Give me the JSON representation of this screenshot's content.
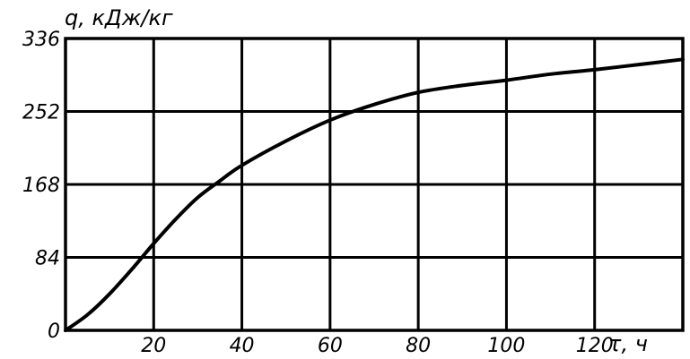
{
  "chart_data": {
    "type": "line",
    "title": "",
    "ylabel": "q, кДж/кг",
    "xlabel": "τ, ч",
    "xlim": [
      0,
      140
    ],
    "ylim": [
      0,
      336
    ],
    "x_ticks": [
      0,
      20,
      40,
      60,
      80,
      100,
      120,
      140
    ],
    "x_tick_labels": [
      "20",
      "40",
      "60",
      "80",
      "100",
      "120"
    ],
    "y_ticks": [
      0,
      84,
      168,
      252,
      336
    ],
    "y_tick_labels": [
      "0",
      "84",
      "168",
      "252",
      "336"
    ],
    "grid": true,
    "colors": {
      "line": "#000000",
      "grid": "#000000",
      "background": "#ffffff"
    },
    "series": [
      {
        "x": [
          0,
          5,
          10,
          15,
          20,
          25,
          30,
          35,
          40,
          50,
          60,
          70,
          80,
          90,
          100,
          110,
          120,
          130,
          140
        ],
        "values": [
          0,
          18,
          42,
          70,
          100,
          128,
          153,
          172,
          190,
          218,
          242,
          260,
          274,
          282,
          288,
          295,
          300,
          306,
          312
        ]
      }
    ]
  }
}
